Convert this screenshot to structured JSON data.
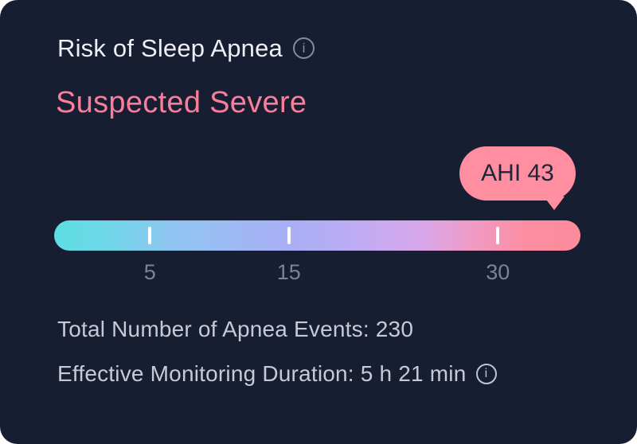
{
  "card": {
    "title": "Risk of Sleep Apnea",
    "risk_level": "Suspected Severe",
    "info_icon_glyph": "i"
  },
  "chart_data": {
    "type": "gauge",
    "title": "Risk of Sleep Apnea",
    "value_label": "AHI 43",
    "ahi_value": 43,
    "scale_ticks": [
      {
        "label": "5",
        "percent": 18.2
      },
      {
        "label": "15",
        "percent": 44.6
      },
      {
        "label": "30",
        "percent": 84.3
      }
    ],
    "gradient_stops": [
      {
        "color": "#5cdfe2",
        "percent": 0
      },
      {
        "color": "#6fd6e8",
        "percent": 10
      },
      {
        "color": "#8fc6f1",
        "percent": 22
      },
      {
        "color": "#9fb8f4",
        "percent": 35
      },
      {
        "color": "#a9aff5",
        "percent": 45
      },
      {
        "color": "#bfabf3",
        "percent": 58
      },
      {
        "color": "#d9a7ea",
        "percent": 70
      },
      {
        "color": "#f09ac2",
        "percent": 80
      },
      {
        "color": "#fd8da0",
        "percent": 90
      },
      {
        "color": "#fd8c9d",
        "percent": 100
      }
    ],
    "bubble_color": "#ff8fa0"
  },
  "stats": {
    "apnea_events": "Total Number of Apnea Events: 230",
    "monitoring_duration": "Effective Monitoring Duration: 5 h 21 min"
  },
  "colors": {
    "card_background": "#171e32",
    "title_text": "#eef0f5",
    "risk_text": "#f97e9b",
    "tick_label_text": "#7d8396",
    "stat_text": "#c6cad7"
  }
}
